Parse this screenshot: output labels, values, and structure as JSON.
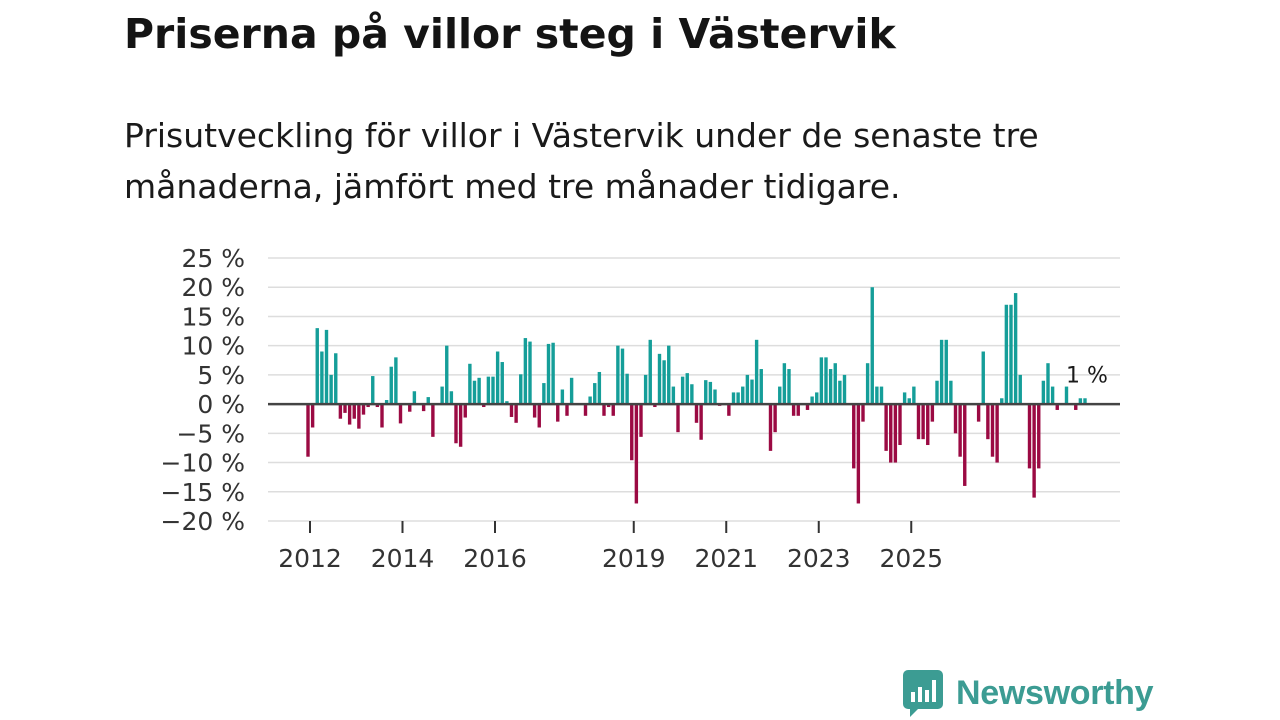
{
  "header": {
    "title": "Priserna på villor steg i Västervik",
    "subtitle": "Prisutveckling för villor i Västervik under de senaste tre månaderna, jämfört med tre månader tidigare."
  },
  "brand": {
    "name": "Newsworthy"
  },
  "colors": {
    "positive": "#159e99",
    "negative": "#9b0a43",
    "zero_line": "#444444",
    "grid": "#dddddd",
    "brand": "#3c9c93"
  },
  "chart_data": {
    "type": "bar",
    "title": "Priserna på villor steg i Västervik",
    "xlabel": "",
    "ylabel": "",
    "ylim": [
      -20,
      25
    ],
    "grid": true,
    "y_ticks": [
      {
        "value": 25,
        "label": "25 %"
      },
      {
        "value": 20,
        "label": "20 %"
      },
      {
        "value": 15,
        "label": "15 %"
      },
      {
        "value": 10,
        "label": "10 %"
      },
      {
        "value": 5,
        "label": "5 %"
      },
      {
        "value": 0,
        "label": "0 %"
      },
      {
        "value": -5,
        "label": "−5 %"
      },
      {
        "value": -10,
        "label": "−10 %"
      },
      {
        "value": -15,
        "label": "−15 %"
      },
      {
        "value": -20,
        "label": "−20 %"
      }
    ],
    "x_ticks": [
      {
        "index": 0,
        "label": "2012"
      },
      {
        "index": 20,
        "label": "2014"
      },
      {
        "index": 40,
        "label": "2016"
      },
      {
        "index": 70,
        "label": "2019"
      },
      {
        "index": 90,
        "label": "2021"
      },
      {
        "index": 110,
        "label": "2023"
      },
      {
        "index": 130,
        "label": "2025"
      }
    ],
    "last_value_label": "1 %",
    "values": [
      -9,
      -4,
      13,
      9,
      12.7,
      5,
      8.7,
      -2.5,
      -1.5,
      -3.5,
      -2.5,
      -4.2,
      -1.8,
      -0.5,
      4.8,
      -0.5,
      -4,
      0.7,
      6.4,
      8,
      -3.3,
      0,
      -1.3,
      2.2,
      0,
      -1.2,
      1.2,
      -5.6,
      0,
      3,
      10,
      2.2,
      -6.7,
      -7.3,
      -2.3,
      6.9,
      4,
      4.5,
      -0.5,
      4.7,
      4.7,
      9,
      7.2,
      0.5,
      -2.2,
      -3.2,
      5.1,
      11.3,
      10.7,
      -2.3,
      -4,
      3.6,
      10.3,
      10.5,
      -3,
      2.5,
      -2,
      4.5,
      0,
      0,
      -2,
      1.3,
      3.6,
      5.5,
      -2,
      -0.5,
      -2,
      10,
      9.5,
      5.2,
      -9.6,
      -17,
      -5.6,
      5,
      11,
      -0.5,
      8.6,
      7.5,
      10,
      3,
      -4.8,
      4.7,
      5.3,
      3.4,
      -3.2,
      -6.1,
      4.1,
      3.8,
      2.5,
      -0.3,
      0,
      -2,
      2,
      2,
      3,
      5,
      4.2,
      11,
      6,
      0,
      -8,
      -4.8,
      3,
      7,
      6,
      -2,
      -2,
      0,
      -1,
      1.3,
      2,
      8,
      8,
      6,
      7,
      4,
      5,
      0,
      -11,
      -17,
      -3,
      7,
      20,
      3,
      3,
      -8,
      -10,
      -10,
      -7,
      2,
      1,
      3,
      -6,
      -6,
      -7,
      -3,
      4,
      11,
      11,
      4,
      -5,
      -9,
      -14,
      0,
      0,
      -3,
      9,
      -6,
      -9,
      -10,
      1,
      17,
      17,
      19,
      5,
      0,
      -11,
      -16,
      -11,
      4,
      7,
      3,
      -1,
      0,
      3,
      0,
      -1,
      1,
      1
    ]
  }
}
